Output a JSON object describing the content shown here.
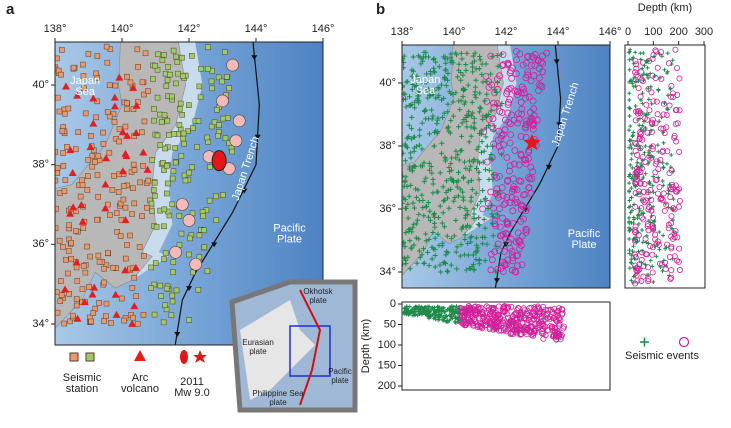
{
  "panel_a": {
    "label": "a",
    "lon_ticks": [
      {
        "value": 138,
        "label": "138°"
      },
      {
        "value": 140,
        "label": "140°"
      },
      {
        "value": 142,
        "label": "142°"
      },
      {
        "value": 144,
        "label": "144°"
      },
      {
        "value": 146,
        "label": "146°"
      }
    ],
    "lat_ticks": [
      {
        "value": 34,
        "label": "34°"
      },
      {
        "value": 36,
        "label": "36°"
      },
      {
        "value": 38,
        "label": "38°"
      },
      {
        "value": 40,
        "label": "40°"
      }
    ],
    "sea_label": [
      "Japan",
      "Sea"
    ],
    "trench_label": "Japan Trench",
    "plate_label": [
      "Pacific",
      "Plate"
    ],
    "legend": {
      "station": [
        "Seismic",
        "station"
      ],
      "volcano": [
        "Arc",
        "volcano"
      ],
      "quake": [
        "2011",
        "Mw 9.0"
      ]
    },
    "inset": {
      "okhotsk": [
        "Okhotsk",
        "plate"
      ],
      "eurasian": [
        "Eurasian",
        "plate"
      ],
      "pacific": [
        "Pacific",
        "plate"
      ],
      "philippine": [
        "Philippine Sea",
        "plate"
      ]
    }
  },
  "panel_b": {
    "label": "b",
    "lon_ticks": [
      {
        "value": 138,
        "label": "138°"
      },
      {
        "value": 140,
        "label": "140°"
      },
      {
        "value": 142,
        "label": "142°"
      },
      {
        "value": 144,
        "label": "144°"
      },
      {
        "value": 146,
        "label": "146°"
      }
    ],
    "lat_ticks": [
      {
        "value": 34,
        "label": "34°"
      },
      {
        "value": 36,
        "label": "36°"
      },
      {
        "value": 38,
        "label": "38°"
      },
      {
        "value": 40,
        "label": "40°"
      }
    ],
    "sea_label": [
      "Japan",
      "Sea"
    ],
    "trench_label": "Japan Trench",
    "plate_label": [
      "Pacific",
      "Plate"
    ],
    "depth_title": "Depth (km)",
    "depth_ticks_top": [
      0,
      100,
      200,
      300
    ],
    "depth_ticks_side": [
      0,
      50,
      100,
      150,
      200
    ],
    "legend": "Seismic events"
  }
}
